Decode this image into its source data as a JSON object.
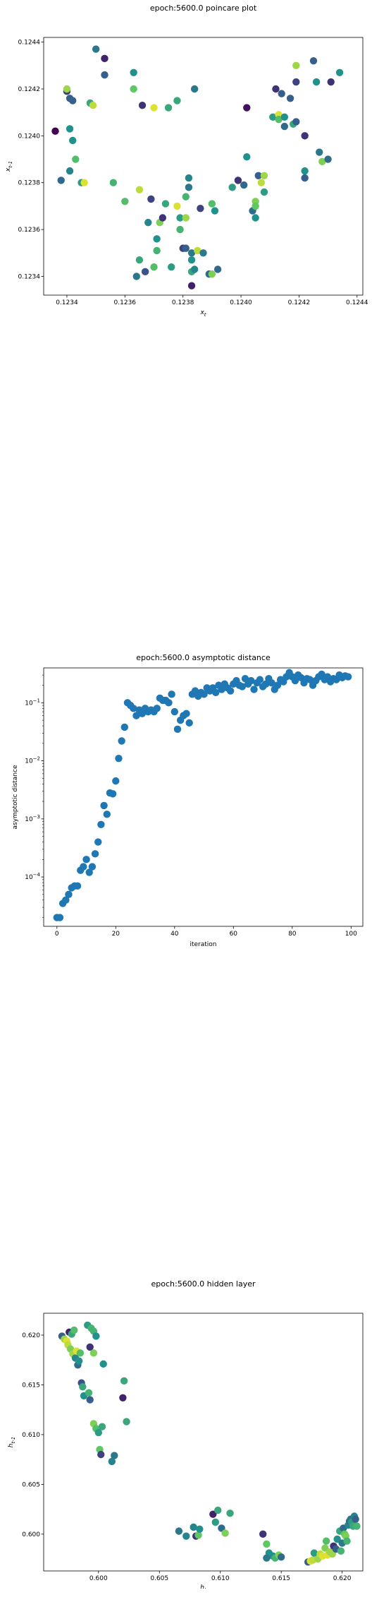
{
  "chart_data": [
    {
      "type": "scatter",
      "title": "epoch:5600.0 poincare plot",
      "xlabel": "x_t",
      "ylabel": "x_{t-1}",
      "xlim": [
        0.12332,
        0.12442
      ],
      "ylim": [
        0.12332,
        0.12442
      ],
      "xticks": [
        "0.1234",
        "0.1236",
        "0.1238",
        "0.1240",
        "0.1242",
        "0.1244"
      ],
      "yticks": [
        "0.1234",
        "0.1236",
        "0.1238",
        "0.1240",
        "0.1242",
        "0.1244"
      ],
      "xtick_values": [
        0.1234,
        0.1236,
        0.1238,
        0.124,
        0.1242,
        0.1244
      ],
      "ytick_values": [
        0.1234,
        0.1236,
        0.1238,
        0.124,
        0.1242,
        0.1244
      ],
      "colormap": "viridis",
      "points": [
        [
          0.12336,
          0.12402,
          0.0
        ],
        [
          0.12338,
          0.12381,
          0.35
        ],
        [
          0.1234,
          0.12419,
          0.2
        ],
        [
          0.1234,
          0.1242,
          0.85
        ],
        [
          0.12341,
          0.12416,
          0.3
        ],
        [
          0.12342,
          0.12415,
          0.3
        ],
        [
          0.12342,
          0.12398,
          0.5
        ],
        [
          0.12341,
          0.12403,
          0.5
        ],
        [
          0.12341,
          0.12385,
          0.45
        ],
        [
          0.12343,
          0.1239,
          0.7
        ],
        [
          0.12345,
          0.1238,
          0.55
        ],
        [
          0.12346,
          0.1238,
          0.95
        ],
        [
          0.12348,
          0.12414,
          0.6
        ],
        [
          0.12349,
          0.12413,
          0.9
        ],
        [
          0.1235,
          0.12437,
          0.4
        ],
        [
          0.12353,
          0.12433,
          0.1
        ],
        [
          0.12353,
          0.12426,
          0.3
        ],
        [
          0.12356,
          0.1238,
          0.65
        ],
        [
          0.1236,
          0.12372,
          0.7
        ],
        [
          0.12363,
          0.1242,
          0.75
        ],
        [
          0.12363,
          0.12427,
          0.5
        ],
        [
          0.12365,
          0.12347,
          0.6
        ],
        [
          0.12364,
          0.1234,
          0.4
        ],
        [
          0.12365,
          0.12377,
          0.9
        ],
        [
          0.12366,
          0.12413,
          0.15
        ],
        [
          0.12368,
          0.12363,
          0.45
        ],
        [
          0.12367,
          0.12342,
          0.25
        ],
        [
          0.12369,
          0.12373,
          0.2
        ],
        [
          0.1237,
          0.12344,
          0.7
        ],
        [
          0.1237,
          0.12412,
          0.95
        ],
        [
          0.12371,
          0.12356,
          0.5
        ],
        [
          0.12371,
          0.12351,
          0.65
        ],
        [
          0.12372,
          0.12363,
          0.8
        ],
        [
          0.12373,
          0.12365,
          0.15
        ],
        [
          0.12374,
          0.12371,
          0.6
        ],
        [
          0.12375,
          0.12412,
          0.6
        ],
        [
          0.12376,
          0.12344,
          0.55
        ],
        [
          0.12378,
          0.1237,
          0.95
        ],
        [
          0.12378,
          0.12415,
          0.6
        ],
        [
          0.12379,
          0.12365,
          0.55
        ],
        [
          0.12379,
          0.1236,
          0.65
        ],
        [
          0.1238,
          0.12352,
          0.2
        ],
        [
          0.12381,
          0.12352,
          0.3
        ],
        [
          0.12381,
          0.12365,
          0.85
        ],
        [
          0.12381,
          0.12374,
          0.65
        ],
        [
          0.12382,
          0.12378,
          0.4
        ],
        [
          0.12382,
          0.12382,
          0.45
        ],
        [
          0.12383,
          0.1235,
          0.4
        ],
        [
          0.12383,
          0.12347,
          0.5
        ],
        [
          0.12383,
          0.12342,
          0.6
        ],
        [
          0.12383,
          0.12336,
          0.1
        ],
        [
          0.12384,
          0.1242,
          0.4
        ],
        [
          0.12384,
          0.12343,
          0.45
        ],
        [
          0.12385,
          0.12351,
          0.9
        ],
        [
          0.12386,
          0.12369,
          0.2
        ],
        [
          0.12387,
          0.1235,
          0.4
        ],
        [
          0.12389,
          0.12341,
          0.35
        ],
        [
          0.1239,
          0.12341,
          0.8
        ],
        [
          0.1239,
          0.12371,
          0.7
        ],
        [
          0.12391,
          0.12368,
          0.5
        ],
        [
          0.12392,
          0.12343,
          0.35
        ],
        [
          0.12397,
          0.12378,
          0.55
        ],
        [
          0.12399,
          0.12381,
          0.15
        ],
        [
          0.12401,
          0.12379,
          0.35
        ],
        [
          0.12402,
          0.12412,
          0.05
        ],
        [
          0.12402,
          0.12391,
          0.5
        ],
        [
          0.12404,
          0.12368,
          0.35
        ],
        [
          0.12405,
          0.12365,
          0.5
        ],
        [
          0.12405,
          0.12372,
          0.8
        ],
        [
          0.12405,
          0.1237,
          0.75
        ],
        [
          0.12406,
          0.12383,
          0.3
        ],
        [
          0.12407,
          0.1238,
          0.9
        ],
        [
          0.12408,
          0.12383,
          0.85
        ],
        [
          0.12408,
          0.12376,
          0.55
        ],
        [
          0.12411,
          0.12408,
          0.55
        ],
        [
          0.12412,
          0.1242,
          0.15
        ],
        [
          0.12413,
          0.12409,
          0.95
        ],
        [
          0.12413,
          0.12407,
          0.7
        ],
        [
          0.12414,
          0.12418,
          0.3
        ],
        [
          0.12415,
          0.12404,
          0.35
        ],
        [
          0.12415,
          0.12408,
          0.5
        ],
        [
          0.12417,
          0.12416,
          0.3
        ],
        [
          0.12418,
          0.12405,
          0.6
        ],
        [
          0.12419,
          0.12406,
          0.3
        ],
        [
          0.12419,
          0.12423,
          0.2
        ],
        [
          0.12419,
          0.1243,
          0.85
        ],
        [
          0.12422,
          0.124,
          0.15
        ],
        [
          0.12422,
          0.12385,
          0.5
        ],
        [
          0.12422,
          0.12382,
          0.3
        ],
        [
          0.12425,
          0.12432,
          0.3
        ],
        [
          0.12426,
          0.12423,
          0.5
        ],
        [
          0.12427,
          0.12393,
          0.4
        ],
        [
          0.12428,
          0.12389,
          0.8
        ],
        [
          0.1243,
          0.1239,
          0.35
        ],
        [
          0.12431,
          0.12423,
          0.15
        ],
        [
          0.12434,
          0.12427,
          0.5
        ]
      ]
    },
    {
      "type": "scatter",
      "title": "epoch:5600.0 asymptotic distance",
      "xlabel": "iteration",
      "ylabel": "asymptotic distance",
      "xlim": [
        -4.5,
        104
      ],
      "ylim_log10": [
        -4.85,
        -0.4
      ],
      "yscale": "log",
      "xticks": [
        "0",
        "20",
        "40",
        "60",
        "80",
        "100"
      ],
      "xtick_values": [
        0,
        20,
        40,
        60,
        80,
        100
      ],
      "yticks": [
        "10^-4",
        "10^-3",
        "10^-2",
        "10^-1"
      ],
      "ytick_values": [
        -4,
        -3,
        -2,
        -1
      ],
      "color": "#1f77b4",
      "x": [
        0,
        1,
        2,
        3,
        4,
        5,
        6,
        7,
        8,
        9,
        10,
        11,
        12,
        13,
        14,
        15,
        16,
        17,
        18,
        19,
        20,
        21,
        22,
        23,
        24,
        25,
        26,
        27,
        28,
        29,
        30,
        31,
        32,
        33,
        34,
        35,
        36,
        37,
        38,
        39,
        40,
        41,
        42,
        43,
        44,
        45,
        46,
        47,
        48,
        49,
        50,
        51,
        52,
        53,
        54,
        55,
        56,
        57,
        58,
        59,
        60,
        61,
        62,
        63,
        64,
        65,
        66,
        67,
        68,
        69,
        70,
        71,
        72,
        73,
        74,
        75,
        76,
        77,
        78,
        79,
        80,
        81,
        82,
        83,
        84,
        85,
        86,
        87,
        88,
        89,
        90,
        91,
        92,
        93,
        94,
        95,
        96,
        97,
        98,
        99
      ],
      "y": [
        2e-05,
        2e-05,
        3.5e-05,
        4e-05,
        5e-05,
        6.5e-05,
        7e-05,
        7e-05,
        0.00013,
        0.00015,
        0.0002,
        0.00012,
        0.00015,
        0.00025,
        0.0004,
        0.0008,
        0.0017,
        0.0012,
        0.0028,
        0.0027,
        0.0045,
        0.011,
        0.022,
        0.038,
        0.1,
        0.09,
        0.08,
        0.06,
        0.075,
        0.065,
        0.08,
        0.07,
        0.075,
        0.07,
        0.08,
        0.12,
        0.11,
        0.11,
        0.1,
        0.14,
        0.07,
        0.035,
        0.05,
        0.06,
        0.065,
        0.045,
        0.14,
        0.16,
        0.13,
        0.15,
        0.14,
        0.18,
        0.16,
        0.18,
        0.15,
        0.2,
        0.17,
        0.21,
        0.18,
        0.16,
        0.21,
        0.24,
        0.2,
        0.19,
        0.26,
        0.21,
        0.24,
        0.17,
        0.22,
        0.25,
        0.19,
        0.21,
        0.26,
        0.22,
        0.17,
        0.2,
        0.25,
        0.23,
        0.28,
        0.33,
        0.28,
        0.24,
        0.3,
        0.27,
        0.22,
        0.26,
        0.25,
        0.2,
        0.24,
        0.28,
        0.31,
        0.25,
        0.28,
        0.23,
        0.26,
        0.25,
        0.3,
        0.27,
        0.29,
        0.28
      ]
    },
    {
      "type": "scatter",
      "title": "epoch:5600.0 hidden layer",
      "xlabel": "h_t",
      "ylabel": "h_{t-1}",
      "xlim": [
        0.5955,
        0.6217
      ],
      "ylim": [
        0.5963,
        0.6222
      ],
      "xticks": [
        "0.600",
        "0.605",
        "0.610",
        "0.615",
        "0.620"
      ],
      "xtick_values": [
        0.6,
        0.605,
        0.61,
        0.615,
        0.62
      ],
      "yticks": [
        "0.600",
        "0.605",
        "0.610",
        "0.615",
        "0.620"
      ],
      "ytick_values": [
        0.6,
        0.605,
        0.61,
        0.615,
        0.62
      ],
      "colormap": "viridis",
      "points": [
        [
          0.597,
          0.6199,
          0.3
        ],
        [
          0.5972,
          0.6196,
          0.85
        ],
        [
          0.5974,
          0.6194,
          0.95
        ],
        [
          0.5976,
          0.6203,
          0.1
        ],
        [
          0.5978,
          0.6201,
          0.6
        ],
        [
          0.5975,
          0.619,
          0.9
        ],
        [
          0.5977,
          0.6186,
          0.8
        ],
        [
          0.5979,
          0.6181,
          0.85
        ],
        [
          0.598,
          0.6205,
          0.7
        ],
        [
          0.5981,
          0.6177,
          0.45
        ],
        [
          0.5982,
          0.6184,
          0.95
        ],
        [
          0.5983,
          0.617,
          0.35
        ],
        [
          0.5984,
          0.6174,
          0.5
        ],
        [
          0.5985,
          0.6182,
          0.7
        ],
        [
          0.5986,
          0.6152,
          0.25
        ],
        [
          0.5987,
          0.6148,
          0.6
        ],
        [
          0.5988,
          0.6139,
          0.5
        ],
        [
          0.5991,
          0.621,
          0.55
        ],
        [
          0.5992,
          0.6142,
          0.65
        ],
        [
          0.5993,
          0.6135,
          0.3
        ],
        [
          0.5994,
          0.6207,
          0.65
        ],
        [
          0.5996,
          0.6204,
          0.65
        ],
        [
          0.5993,
          0.6188,
          0.15
        ],
        [
          0.5996,
          0.6182,
          0.8
        ],
        [
          0.5998,
          0.6199,
          0.5
        ],
        [
          0.5996,
          0.6111,
          0.8
        ],
        [
          0.5998,
          0.6106,
          0.7
        ],
        [
          0.6,
          0.6102,
          0.55
        ],
        [
          0.6001,
          0.6085,
          0.75
        ],
        [
          0.6002,
          0.608,
          0.2
        ],
        [
          0.6004,
          0.6171,
          0.5
        ],
        [
          0.6003,
          0.6108,
          0.6
        ],
        [
          0.6011,
          0.6073,
          0.45
        ],
        [
          0.6013,
          0.6079,
          0.4
        ],
        [
          0.602,
          0.6137,
          0.1
        ],
        [
          0.6021,
          0.6154,
          0.6
        ],
        [
          0.6023,
          0.6113,
          0.6
        ],
        [
          0.6066,
          0.6003,
          0.4
        ],
        [
          0.6072,
          0.5998,
          0.45
        ],
        [
          0.6078,
          0.6007,
          0.45
        ],
        [
          0.608,
          0.5998,
          0.15
        ],
        [
          0.6082,
          0.5999,
          0.75
        ],
        [
          0.6083,
          0.6005,
          0.5
        ],
        [
          0.6094,
          0.602,
          0.1
        ],
        [
          0.6096,
          0.6012,
          0.55
        ],
        [
          0.6098,
          0.6024,
          0.6
        ],
        [
          0.6101,
          0.6006,
          0.35
        ],
        [
          0.6104,
          0.6001,
          0.8
        ],
        [
          0.6108,
          0.6021,
          0.6
        ],
        [
          0.6135,
          0.6,
          0.15
        ],
        [
          0.6138,
          0.599,
          0.75
        ],
        [
          0.614,
          0.5981,
          0.5
        ],
        [
          0.6143,
          0.5978,
          0.5
        ],
        [
          0.6145,
          0.5976,
          0.65
        ],
        [
          0.6148,
          0.5979,
          0.8
        ],
        [
          0.615,
          0.5977,
          0.35
        ],
        [
          0.6138,
          0.5976,
          0.4
        ],
        [
          0.6172,
          0.5972,
          0.3
        ],
        [
          0.6174,
          0.5973,
          0.95
        ],
        [
          0.6176,
          0.5974,
          0.9
        ],
        [
          0.6177,
          0.5981,
          0.55
        ],
        [
          0.618,
          0.5975,
          0.85
        ],
        [
          0.6182,
          0.598,
          0.9
        ],
        [
          0.6184,
          0.5978,
          0.95
        ],
        [
          0.6186,
          0.5986,
          0.8
        ],
        [
          0.6187,
          0.5993,
          0.7
        ],
        [
          0.6188,
          0.5979,
          0.95
        ],
        [
          0.619,
          0.5982,
          0.85
        ],
        [
          0.6192,
          0.598,
          0.85
        ],
        [
          0.6193,
          0.5988,
          0.15
        ],
        [
          0.6195,
          0.5985,
          0.3
        ],
        [
          0.6196,
          0.5995,
          0.5
        ],
        [
          0.6198,
          0.6003,
          0.6
        ],
        [
          0.6199,
          0.5983,
          0.65
        ],
        [
          0.62,
          0.5991,
          0.4
        ],
        [
          0.6201,
          0.6006,
          0.35
        ],
        [
          0.6202,
          0.6,
          0.75
        ],
        [
          0.6203,
          0.5998,
          0.8
        ],
        [
          0.6204,
          0.5993,
          0.65
        ],
        [
          0.6205,
          0.6009,
          0.45
        ],
        [
          0.6206,
          0.6013,
          0.4
        ],
        [
          0.6207,
          0.6015,
          0.4
        ],
        [
          0.6208,
          0.6012,
          0.55
        ],
        [
          0.6209,
          0.6008,
          0.6
        ],
        [
          0.621,
          0.6018,
          0.45
        ],
        [
          0.6211,
          0.6015,
          0.3
        ],
        [
          0.6212,
          0.6008,
          0.65
        ]
      ]
    }
  ]
}
